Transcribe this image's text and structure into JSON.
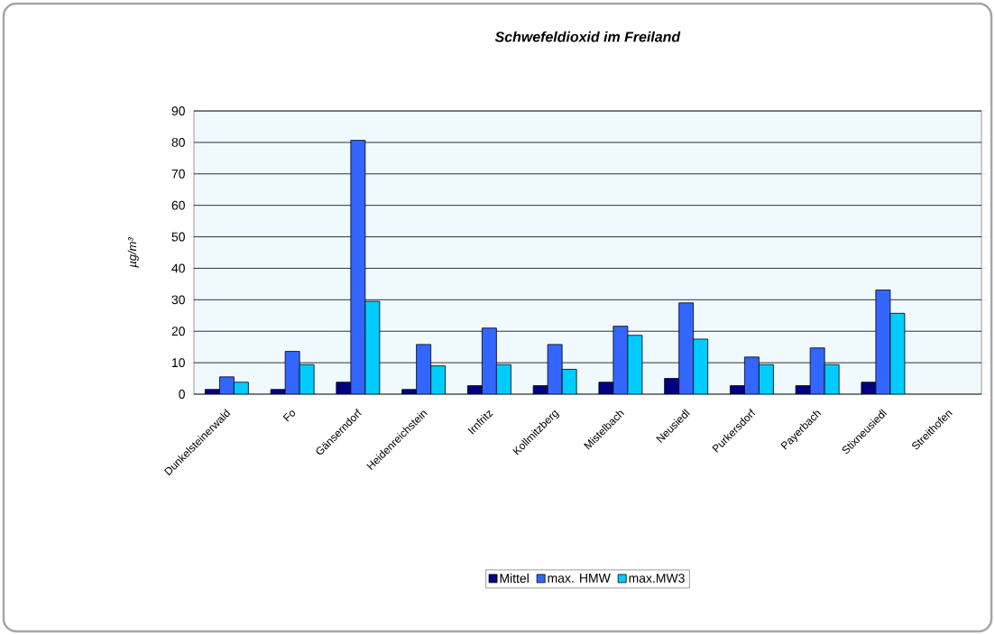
{
  "chart_data": {
    "type": "bar",
    "title": "*Schwefeldioxid im Freiland*",
    "ylabel": "µg/m³",
    "categories": [
      "Dunkelsteinerwald",
      "Fo",
      "Gänserndorf",
      "Heidenreichstein",
      "Irnfritz",
      "Kollmitzberg",
      "Mistelbach",
      "Neusiedl",
      "Purkersdorf",
      "Payerbach",
      "Stixneusiedl",
      "Streithofen"
    ],
    "series": [
      {
        "name": "Mittel",
        "color": "#000080",
        "values": [
          1.5,
          1.5,
          3.8,
          1.5,
          2.7,
          2.7,
          3.8,
          5.0,
          2.7,
          2.7,
          3.8,
          null
        ]
      },
      {
        "name": "max. HMW",
        "color": "#3366ff",
        "values": [
          5.5,
          13.6,
          80.7,
          15.8,
          21.0,
          15.8,
          21.6,
          29.0,
          11.8,
          14.7,
          33.1,
          null
        ]
      },
      {
        "name": "max.MW3",
        "color": "#00ccff",
        "values": [
          3.8,
          9.4,
          29.5,
          9.0,
          9.4,
          7.9,
          18.7,
          17.5,
          9.4,
          9.4,
          25.7,
          null
        ]
      }
    ],
    "ylim": [
      0,
      90
    ],
    "yticks": [
      0,
      10,
      20,
      30,
      40,
      50,
      60,
      70,
      80,
      90
    ],
    "grid": "y",
    "legend": "bottom"
  }
}
